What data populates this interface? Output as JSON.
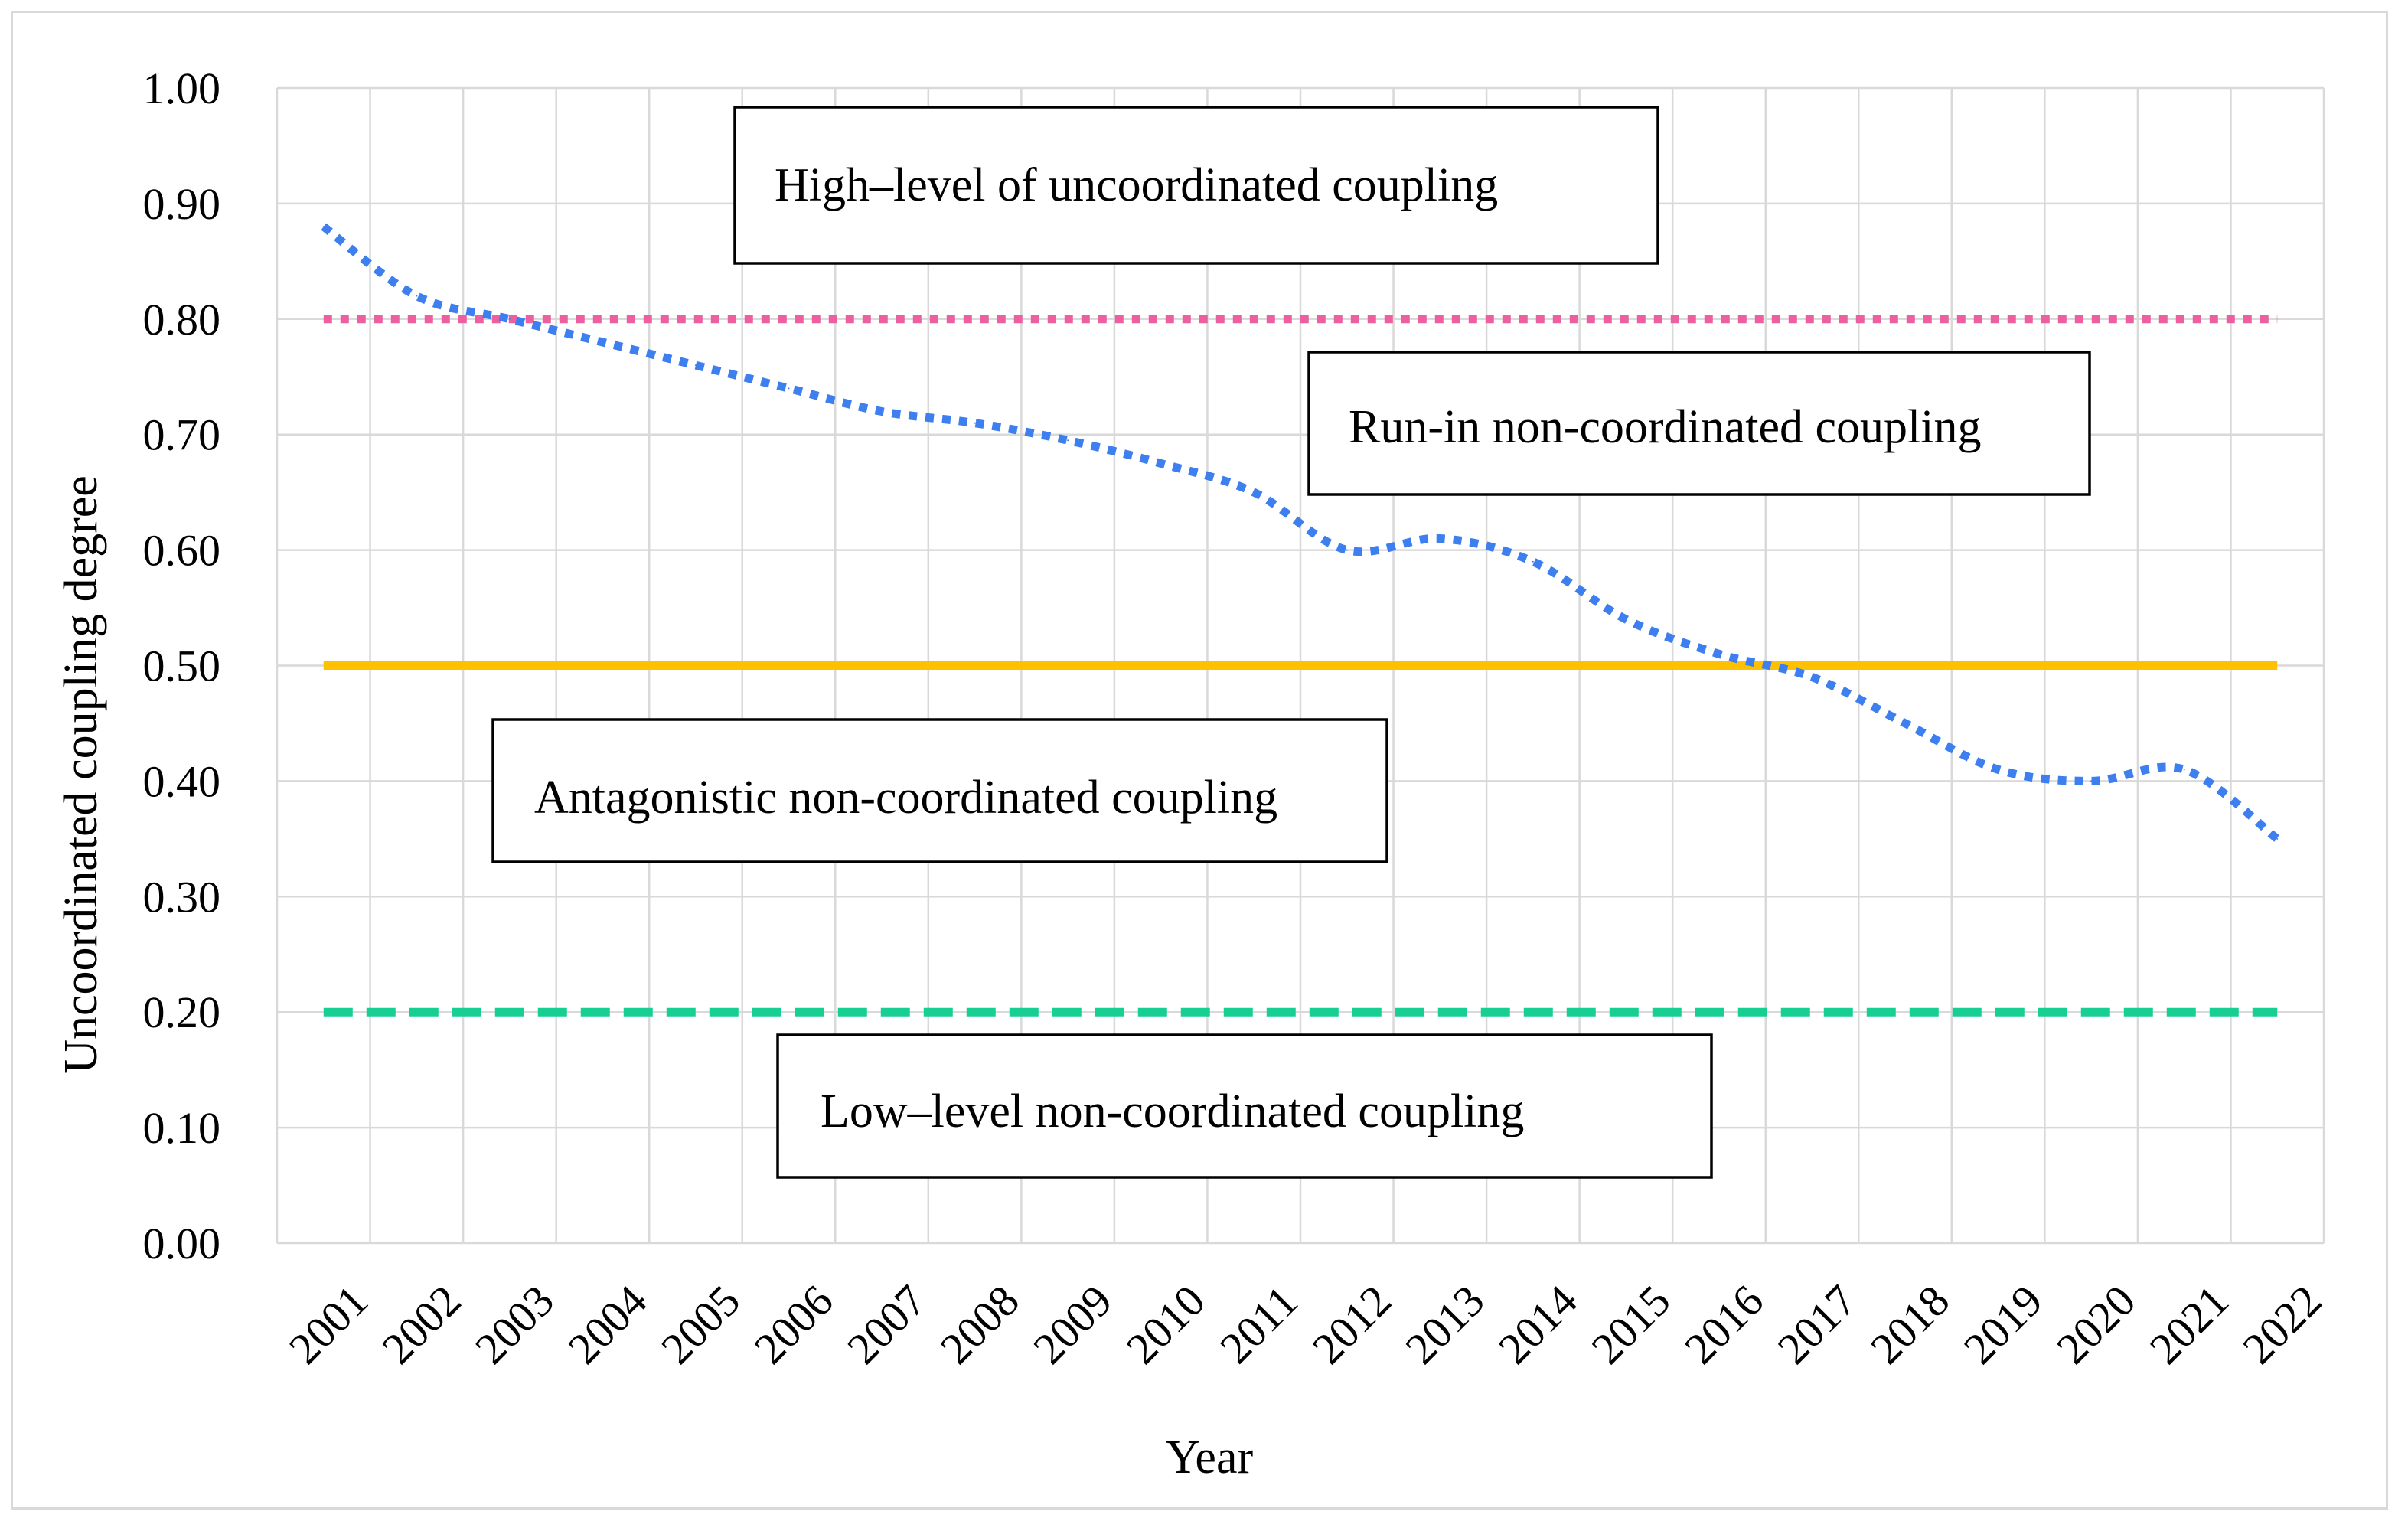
{
  "chart_data": {
    "type": "line",
    "xlabel": "Year",
    "ylabel": "Uncoordinated coupling degree",
    "ylim": [
      0,
      1
    ],
    "y_ticks": [
      "0.00",
      "0.10",
      "0.20",
      "0.30",
      "0.40",
      "0.50",
      "0.60",
      "0.70",
      "0.80",
      "0.90",
      "1.00"
    ],
    "categories": [
      "2001",
      "2002",
      "2003",
      "2004",
      "2005",
      "2006",
      "2007",
      "2008",
      "2009",
      "2010",
      "2011",
      "2012",
      "2013",
      "2014",
      "2015",
      "2016",
      "2017",
      "2018",
      "2019",
      "2020",
      "2021",
      "2022"
    ],
    "grid": true,
    "series": [
      {
        "style": "dotted",
        "color": "#3d7fef",
        "values": [
          0.88,
          0.82,
          0.8,
          0.78,
          0.76,
          0.74,
          0.72,
          0.71,
          0.695,
          0.675,
          0.65,
          0.6,
          0.61,
          0.59,
          0.54,
          0.51,
          0.49,
          0.45,
          0.41,
          0.4,
          0.41,
          0.35
        ]
      }
    ],
    "thresholds": [
      {
        "value": 0.8,
        "style": "dotted",
        "color": "#ee5fa0"
      },
      {
        "value": 0.5,
        "style": "solid",
        "color": "#ffc000"
      },
      {
        "value": 0.2,
        "style": "dashed",
        "color": "#18cf93"
      }
    ],
    "annotations": [
      {
        "text": "High–level of uncoordinated coupling"
      },
      {
        "text": "Run-in non-coordinated coupling"
      },
      {
        "text": "Antagonistic non-coordinated coupling"
      },
      {
        "text": "Low–level non-coordinated coupling"
      }
    ]
  }
}
